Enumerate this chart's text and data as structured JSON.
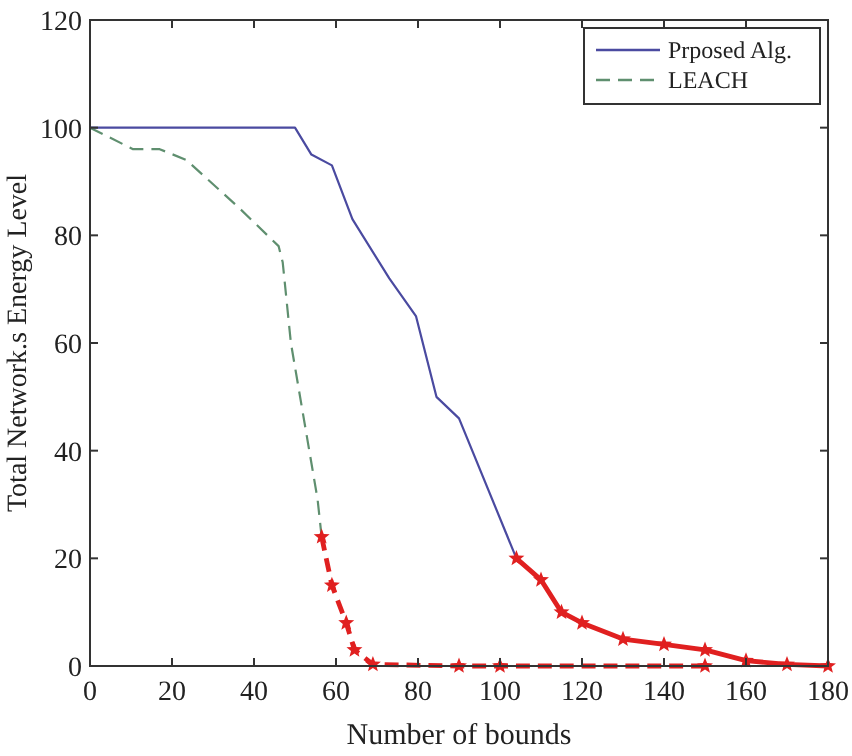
{
  "chart_data": {
    "type": "line",
    "xlabel": "Number of bounds",
    "ylabel": "Total Network.s Energy Level",
    "xlim": [
      0,
      180
    ],
    "ylim": [
      0,
      120
    ],
    "xticks": [
      0,
      20,
      40,
      60,
      80,
      100,
      120,
      140,
      160,
      180
    ],
    "yticks": [
      0,
      20,
      40,
      60,
      80,
      100,
      120
    ],
    "grid": false,
    "legend": "top right",
    "series": [
      {
        "name": "Prposed Alg.",
        "color": "#4a4aa0",
        "line_style": "solid",
        "marker": "none",
        "x": [
          0,
          50,
          54,
          59,
          64,
          73,
          79.5,
          84.5,
          90,
          104
        ],
        "values": [
          100,
          100,
          95,
          93,
          83,
          72,
          65,
          50,
          46,
          20
        ]
      },
      {
        "name": "LEACH",
        "color": "#5f8f6f",
        "line_style": "dashed",
        "marker": "none",
        "x": [
          0,
          10.5,
          17,
          23.5,
          36.5,
          46,
          47,
          49,
          55.5,
          56.5
        ],
        "values": [
          100,
          96,
          96,
          94,
          85,
          78,
          75,
          60,
          31,
          24
        ]
      },
      {
        "color": "#e02020",
        "line_style": "solid",
        "marker": "star",
        "x": [
          104,
          110,
          115,
          120,
          130,
          140,
          150,
          160,
          170,
          180
        ],
        "values": [
          20,
          16,
          10,
          8,
          5,
          4,
          3,
          1,
          0.3,
          0
        ]
      },
      {
        "color": "#e02020",
        "line_style": "dashed",
        "marker": "star",
        "x": [
          56.5,
          59,
          62.5,
          64.5,
          69,
          90,
          100,
          150
        ],
        "values": [
          24,
          15,
          8,
          3,
          0.3,
          0,
          0,
          0
        ]
      }
    ]
  }
}
